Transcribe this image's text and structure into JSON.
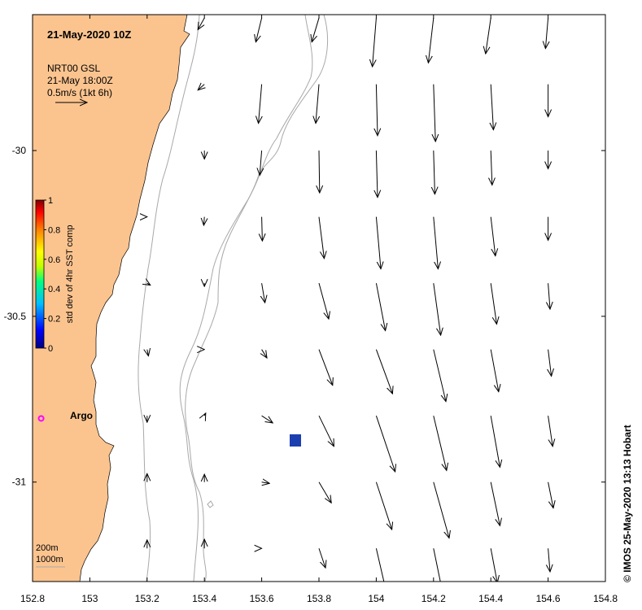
{
  "title": "21-May-2020 10Z",
  "product": {
    "name": "NRT00 GSL",
    "time": "21-May 18:00Z",
    "scale_label": "0.5m/s (1kt 6h)"
  },
  "credit": "© IMOS 25-May-2020 13:13 Hobart",
  "argo": {
    "label": "Argo",
    "color": "#ff00ff",
    "lon": 152.83,
    "lat": -30.808
  },
  "isobath_legend": [
    "200m",
    "1000m"
  ],
  "colorbar": {
    "label": "std dev of 4hr SST comp",
    "ticks": [
      "1",
      "0.8",
      "0.6",
      "0.4",
      "0.2",
      "0"
    ],
    "colors": [
      "#000080",
      "#0000ff",
      "#00bfff",
      "#00ff80",
      "#c0ff00",
      "#ffff00",
      "#ff8000",
      "#ff0000",
      "#800000"
    ]
  },
  "colors": {
    "land": "#fbc48f",
    "isobath": "#a8a8a8",
    "marker": "#1c3fb0"
  },
  "axes": {
    "x_ticks": [
      "152.8",
      "153",
      "153.2",
      "153.4",
      "153.6",
      "153.8",
      "154",
      "154.2",
      "154.4",
      "154.6",
      "154.8"
    ],
    "y_ticks": [
      "-30",
      "-30.5",
      "-31"
    ],
    "x_range": [
      152.8,
      154.8
    ],
    "y_range": [
      -29.59,
      -31.3
    ]
  },
  "marker": {
    "lon": 153.71,
    "lat": -30.87
  },
  "current_vectors": {
    "units": "m/s",
    "lons": [
      152.8,
      153.0,
      153.2,
      153.4,
      153.6,
      153.8,
      154.0,
      154.2,
      154.4,
      154.6
    ],
    "lats": [
      -29.6,
      -29.8,
      -30.0,
      -30.2,
      -30.4,
      -30.6,
      -30.8,
      -31.0,
      -31.2
    ],
    "rows": [
      [
        null,
        null,
        null,
        [
          -0.1,
          -0.18
        ],
        [
          -0.09,
          -0.37
        ],
        [
          -0.11,
          -0.37
        ],
        [
          -0.06,
          -0.75
        ],
        [
          -0.08,
          -0.69
        ],
        [
          -0.08,
          -0.55
        ],
        [
          -0.04,
          -0.47
        ]
      ],
      [
        null,
        null,
        null,
        [
          -0.1,
          -0.09
        ],
        [
          -0.05,
          -0.6
        ],
        [
          -0.05,
          -0.6
        ],
        [
          0.02,
          -0.79
        ],
        [
          0.03,
          -0.88
        ],
        [
          0.04,
          -0.7
        ],
        [
          0.0,
          -0.5
        ]
      ],
      [
        null,
        null,
        null,
        [
          0.0,
          -0.13
        ],
        [
          -0.03,
          -0.38
        ],
        [
          0.01,
          -0.65
        ],
        [
          0.02,
          -0.72
        ],
        [
          0.02,
          -0.67
        ],
        [
          0.02,
          -0.53
        ],
        [
          0.0,
          -0.28
        ]
      ],
      [
        null,
        null,
        [
          0.0,
          0.0
        ],
        [
          -0.01,
          -0.13
        ],
        [
          0.01,
          -0.37
        ],
        [
          0.08,
          -0.64
        ],
        [
          0.07,
          -0.8
        ],
        [
          0.07,
          -0.8
        ],
        [
          0.07,
          -0.6
        ],
        [
          0.0,
          -0.36
        ]
      ],
      [
        null,
        null,
        [
          0.05,
          -0.03
        ],
        [
          0.0,
          -0.05
        ],
        [
          0.05,
          -0.3
        ],
        [
          0.15,
          -0.55
        ],
        [
          0.14,
          -0.73
        ],
        [
          0.11,
          -0.8
        ],
        [
          0.09,
          -0.63
        ],
        [
          0.03,
          -0.4
        ]
      ],
      [
        null,
        null,
        [
          0.02,
          -0.1
        ],
        [
          0.0,
          0.0
        ],
        [
          0.08,
          -0.13
        ],
        [
          0.21,
          -0.55
        ],
        [
          0.25,
          -0.68
        ],
        [
          0.19,
          -0.8
        ],
        [
          0.12,
          -0.65
        ],
        [
          0.05,
          -0.41
        ]
      ],
      [
        null,
        null,
        [
          0.0,
          -0.1
        ],
        [
          0.02,
          0.04
        ],
        [
          0.17,
          -0.11
        ],
        [
          0.23,
          -0.47
        ],
        [
          0.29,
          -0.86
        ],
        [
          0.2,
          -0.84
        ],
        [
          0.14,
          -0.79
        ],
        [
          0.07,
          -0.47
        ]
      ],
      [
        null,
        null,
        [
          0.0,
          0.13
        ],
        [
          0.0,
          0.12
        ],
        [
          0.12,
          -0.02
        ],
        [
          0.19,
          -0.32
        ],
        [
          0.24,
          -0.73
        ],
        [
          0.24,
          -0.86
        ],
        [
          0.14,
          -0.67
        ],
        [
          0.08,
          -0.4
        ]
      ],
      [
        null,
        null,
        [
          0.0,
          0.13
        ],
        [
          0.0,
          0.14
        ],
        [
          0.0,
          0.0
        ],
        [
          0.1,
          -0.3
        ],
        [
          0.15,
          -0.65
        ],
        [
          0.15,
          -0.73
        ],
        [
          0.1,
          -0.53
        ],
        [
          0.03,
          -0.36
        ]
      ]
    ]
  }
}
